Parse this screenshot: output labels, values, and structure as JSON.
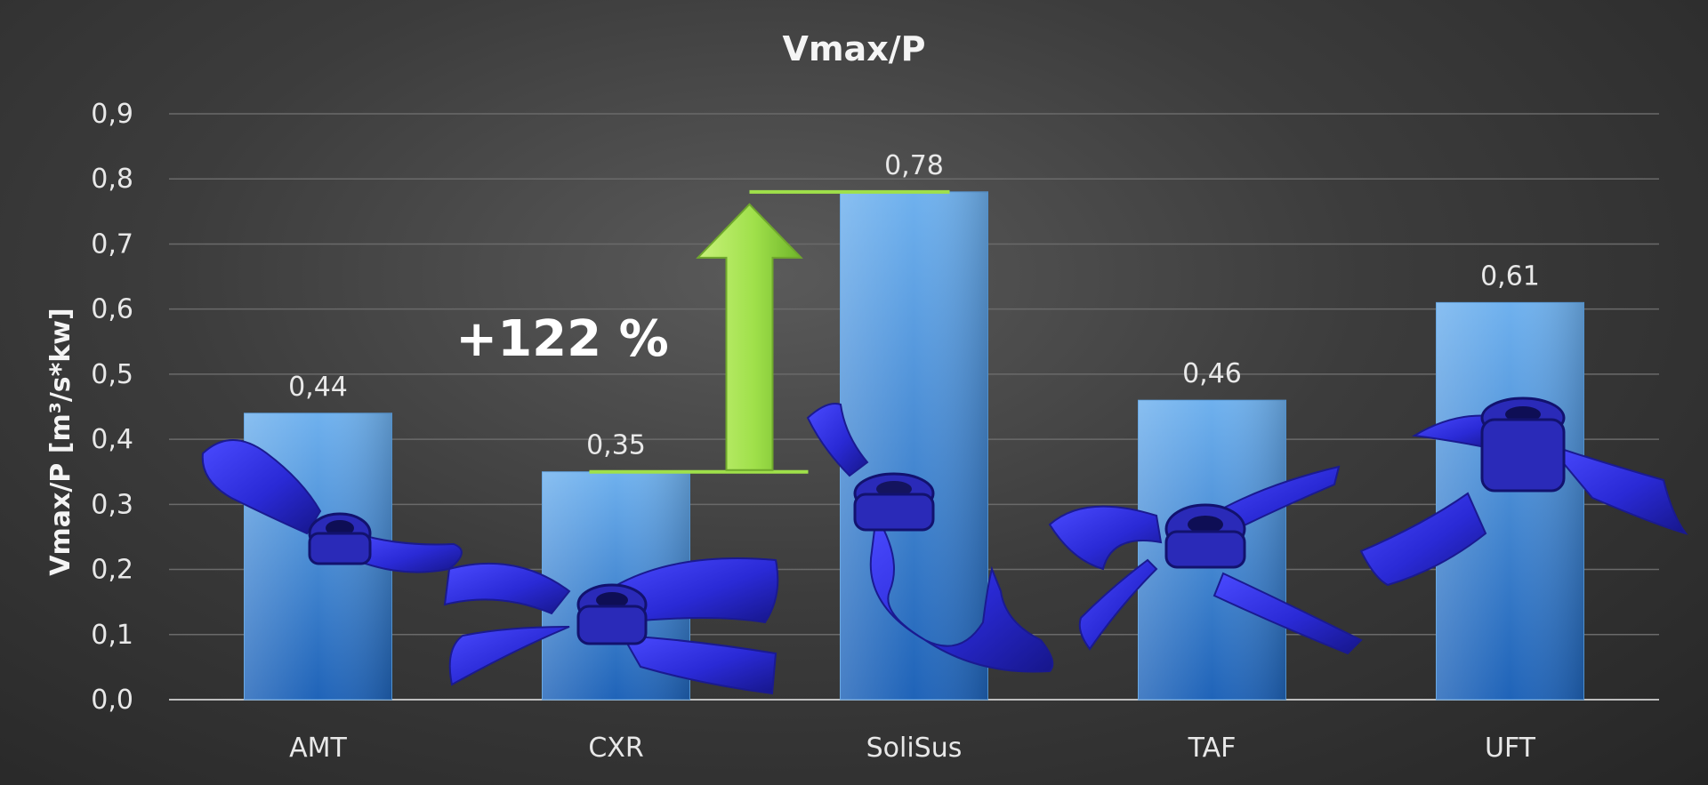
{
  "chart_data": {
    "type": "bar",
    "title": "Vmax/P",
    "ylabel": "Vmax/P [m³/s*kw]",
    "xlabel": "",
    "categories": [
      "AMT",
      "CXR",
      "SoliSus",
      "TAF",
      "UFT"
    ],
    "values": [
      0.44,
      0.35,
      0.78,
      0.46,
      0.61
    ],
    "value_labels": [
      "0,44",
      "0,35",
      "0,78",
      "0,46",
      "0,61"
    ],
    "ylim": [
      0,
      0.9
    ],
    "yticks": [
      0,
      0.1,
      0.2,
      0.3,
      0.4,
      0.5,
      0.6,
      0.7,
      0.8,
      0.9
    ],
    "ytick_labels": [
      "0,0",
      "0,1",
      "0,2",
      "0,3",
      "0,4",
      "0,5",
      "0,6",
      "0,7",
      "0,8",
      "0,9"
    ],
    "grid": true,
    "legend": "none",
    "annotation": {
      "text": "+122 %",
      "from_category": "CXR",
      "to_category": "SoliSus"
    },
    "colors": {
      "bar_top": "#6fb1ee",
      "bar_bottom": "#1f63b8",
      "grid": "#6a6a6a",
      "annotation_arrow": "#9fe04a",
      "impeller": "#2a2acc"
    }
  },
  "images": [
    "AMT impeller",
    "CXR impeller",
    "SoliSus impeller",
    "TAF impeller",
    "UFT impeller"
  ]
}
